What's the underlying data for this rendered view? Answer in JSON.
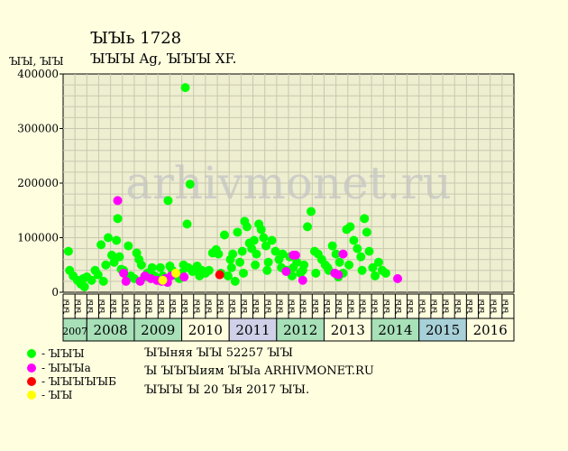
{
  "header": {
    "title": "ꙐꙐь 1728",
    "subtitle": "ꙐꙐꙐ Ag, ꙐꙐꙐ XF.",
    "units": "ꙐꙐ, ꙐꙐ"
  },
  "watermark": "arhivmonet.ru",
  "legend": [
    {
      "label": "- ꙐꙐꙐ",
      "color": "#00ff00"
    },
    {
      "label": "- ꙐꙐꙐа",
      "color": "#ff00ff"
    },
    {
      "label": "- ꙐꙐꙐꙐꙐБ",
      "color": "#ff0000"
    },
    {
      "label": "- ꙐꙐ",
      "color": "#ffff00"
    }
  ],
  "info": {
    "line1": "ꙐꙐняя ꙐꙐ 52257 ꙐꙐ",
    "line2": "Ꙑ ꙐꙐꙐиям ꙐꙐа ARHIVMONET.RU",
    "line3": "ꙐꙐꙐ Ꙑ 20 Ꙑя 2017 ꙐꙐ."
  },
  "chart_data": {
    "type": "scatter",
    "ylim": [
      0,
      400000
    ],
    "yticks": [
      0,
      100000,
      200000,
      300000,
      400000
    ],
    "ytick_labels": [
      "0",
      "100000",
      "200000",
      "300000",
      "400000"
    ],
    "grid": true,
    "quarter_label": "ꙐꙐ",
    "years": [
      {
        "label": "2007",
        "start": 0,
        "end": 2,
        "color": "#a8e0b8"
      },
      {
        "label": "2008",
        "start": 2,
        "end": 6,
        "color": "#a8e0b8"
      },
      {
        "label": "2009",
        "start": 6,
        "end": 10,
        "color": "#a8e0b8"
      },
      {
        "label": "2010",
        "start": 10,
        "end": 14,
        "color": "#ffffe0"
      },
      {
        "label": "2011",
        "start": 14,
        "end": 18,
        "color": "#d0d0e8"
      },
      {
        "label": "2012",
        "start": 18,
        "end": 22,
        "color": "#a8e0b8"
      },
      {
        "label": "2013",
        "start": 22,
        "end": 26,
        "color": "#ffffe0"
      },
      {
        "label": "2014",
        "start": 26,
        "end": 30,
        "color": "#a8e0b8"
      },
      {
        "label": "2015",
        "start": 30,
        "end": 34,
        "color": "#a8d0d8"
      },
      {
        "label": "2016",
        "start": 34,
        "end": 38,
        "color": "#ffffe0"
      }
    ],
    "series": [
      {
        "name": "- ꙐꙐꙐ",
        "color": "#00ff00",
        "points": [
          [
            0.45,
            75000
          ],
          [
            0.55,
            40000
          ],
          [
            0.85,
            30000
          ],
          [
            1.2,
            22000
          ],
          [
            1.5,
            15000
          ],
          [
            1.7,
            25000
          ],
          [
            1.8,
            10000
          ],
          [
            2.0,
            28000
          ],
          [
            2.4,
            22000
          ],
          [
            2.7,
            40000
          ],
          [
            2.95,
            32000
          ],
          [
            3.2,
            87000
          ],
          [
            3.4,
            20000
          ],
          [
            3.6,
            50000
          ],
          [
            3.8,
            100000
          ],
          [
            4.1,
            68000
          ],
          [
            4.3,
            55000
          ],
          [
            4.5,
            95000
          ],
          [
            4.6,
            135000
          ],
          [
            4.75,
            65000
          ],
          [
            4.9,
            42000
          ],
          [
            5.1,
            40000
          ],
          [
            5.5,
            85000
          ],
          [
            5.7,
            30000
          ],
          [
            6.0,
            25000
          ],
          [
            6.2,
            72000
          ],
          [
            6.4,
            60000
          ],
          [
            6.6,
            50000
          ],
          [
            6.85,
            28000
          ],
          [
            7.1,
            35000
          ],
          [
            7.3,
            30000
          ],
          [
            7.5,
            45000
          ],
          [
            7.7,
            30000
          ],
          [
            8.2,
            45000
          ],
          [
            8.4,
            30000
          ],
          [
            8.6,
            22000
          ],
          [
            8.85,
            168000
          ],
          [
            9.0,
            48000
          ],
          [
            9.2,
            40000
          ],
          [
            9.4,
            35000
          ],
          [
            9.6,
            30000
          ],
          [
            9.8,
            25000
          ],
          [
            10.0,
            35000
          ],
          [
            10.15,
            50000
          ],
          [
            10.3,
            375000
          ],
          [
            10.45,
            125000
          ],
          [
            10.55,
            45000
          ],
          [
            10.7,
            198000
          ],
          [
            10.9,
            38000
          ],
          [
            11.1,
            42000
          ],
          [
            11.3,
            48000
          ],
          [
            11.5,
            30000
          ],
          [
            11.7,
            40000
          ],
          [
            12.0,
            35000
          ],
          [
            12.3,
            40000
          ],
          [
            12.6,
            72000
          ],
          [
            12.9,
            78000
          ],
          [
            13.1,
            70000
          ],
          [
            13.3,
            35000
          ],
          [
            13.6,
            105000
          ],
          [
            13.9,
            30000
          ],
          [
            14.1,
            60000
          ],
          [
            14.3,
            70000
          ],
          [
            14.5,
            20000
          ],
          [
            14.7,
            110000
          ],
          [
            14.9,
            55000
          ],
          [
            15.1,
            75000
          ],
          [
            15.3,
            130000
          ],
          [
            15.5,
            120000
          ],
          [
            15.7,
            90000
          ],
          [
            15.9,
            80000
          ],
          [
            16.1,
            95000
          ],
          [
            16.3,
            70000
          ],
          [
            16.5,
            125000
          ],
          [
            16.7,
            115000
          ],
          [
            16.9,
            100000
          ],
          [
            17.1,
            85000
          ],
          [
            17.3,
            55000
          ],
          [
            17.6,
            95000
          ],
          [
            17.9,
            75000
          ],
          [
            18.2,
            60000
          ],
          [
            18.5,
            70000
          ],
          [
            18.8,
            40000
          ],
          [
            19.1,
            65000
          ],
          [
            19.4,
            45000
          ],
          [
            19.7,
            55000
          ],
          [
            20.0,
            35000
          ],
          [
            20.3,
            50000
          ],
          [
            20.6,
            120000
          ],
          [
            20.9,
            148000
          ],
          [
            21.2,
            75000
          ],
          [
            21.5,
            70000
          ],
          [
            21.8,
            60000
          ],
          [
            22.1,
            50000
          ],
          [
            22.4,
            40000
          ],
          [
            22.7,
            85000
          ],
          [
            23.0,
            70000
          ],
          [
            23.3,
            55000
          ],
          [
            23.6,
            35000
          ],
          [
            23.9,
            115000
          ],
          [
            24.2,
            120000
          ],
          [
            24.5,
            95000
          ],
          [
            24.8,
            80000
          ],
          [
            25.1,
            65000
          ],
          [
            25.4,
            135000
          ],
          [
            25.6,
            110000
          ],
          [
            25.8,
            75000
          ],
          [
            26.1,
            45000
          ],
          [
            26.3,
            30000
          ],
          [
            26.6,
            55000
          ],
          [
            26.9,
            40000
          ],
          [
            27.2,
            35000
          ],
          [
            14.2,
            45000
          ],
          [
            15.2,
            35000
          ],
          [
            16.2,
            50000
          ],
          [
            17.2,
            40000
          ],
          [
            18.4,
            45000
          ],
          [
            19.3,
            30000
          ],
          [
            20.2,
            40000
          ],
          [
            21.3,
            35000
          ],
          [
            22.3,
            45000
          ],
          [
            23.2,
            28000
          ],
          [
            24.1,
            50000
          ],
          [
            25.2,
            40000
          ]
        ]
      },
      {
        "name": "- ꙐꙐꙐа",
        "color": "#ff00ff",
        "points": [
          [
            4.6,
            168000
          ],
          [
            5.1,
            35000
          ],
          [
            5.3,
            20000
          ],
          [
            6.5,
            20000
          ],
          [
            6.9,
            30000
          ],
          [
            7.4,
            25000
          ],
          [
            7.9,
            22000
          ],
          [
            8.3,
            20000
          ],
          [
            8.6,
            25000
          ],
          [
            8.8,
            18000
          ],
          [
            9.1,
            30000
          ],
          [
            10.2,
            28000
          ],
          [
            18.8,
            38000
          ],
          [
            19.4,
            68000
          ],
          [
            19.6,
            68000
          ],
          [
            20.2,
            22000
          ],
          [
            22.9,
            35000
          ],
          [
            23.2,
            32000
          ],
          [
            23.6,
            70000
          ],
          [
            28.2,
            25000
          ]
        ]
      },
      {
        "name": "- ꙐꙐꙐꙐꙐБ",
        "color": "#ff0000",
        "points": [
          [
            13.2,
            32000
          ]
        ]
      },
      {
        "name": "- ꙐꙐ",
        "color": "#ffff00",
        "points": [
          [
            8.4,
            22000
          ],
          [
            9.5,
            35000
          ]
        ]
      }
    ]
  }
}
